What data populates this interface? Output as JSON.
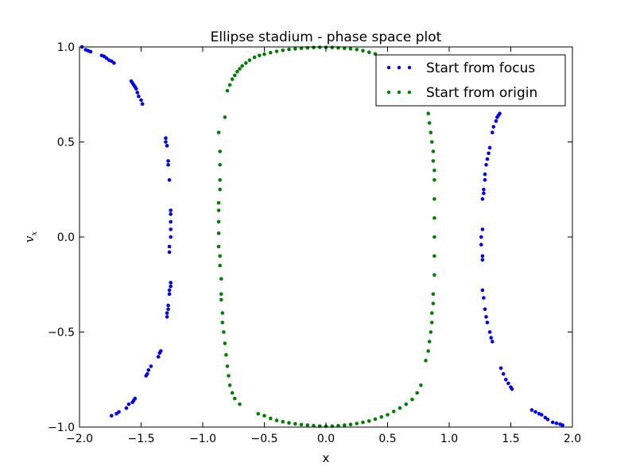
{
  "chart_data": {
    "type": "scatter",
    "title": "Ellipse stadium - phase space plot",
    "xlabel": "x",
    "ylabel": "v_x",
    "xlim": [
      -2.0,
      2.0
    ],
    "ylim": [
      -1.0,
      1.0
    ],
    "xticks": [
      -2.0,
      -1.5,
      -1.0,
      -0.5,
      0.0,
      0.5,
      1.0,
      1.5,
      2.0
    ],
    "yticks": [
      -1.0,
      -0.5,
      0.0,
      0.5,
      1.0
    ],
    "xtick_labels": [
      "−2.0",
      "−1.5",
      "−1.0",
      "−0.5",
      "0.0",
      "0.5",
      "1.0",
      "1.5",
      "2.0"
    ],
    "ytick_labels": [
      "−1.0",
      "−0.5",
      "0.0",
      "0.5",
      "1.0"
    ],
    "grid": false,
    "legend_position": "top-right",
    "series": [
      {
        "name": "Start from focus",
        "color": "#0000ff",
        "points": [
          [
            -1.98,
            1.0
          ],
          [
            -1.95,
            0.985
          ],
          [
            -1.93,
            0.98
          ],
          [
            -1.91,
            0.975
          ],
          [
            -1.82,
            0.955
          ],
          [
            -1.8,
            0.95
          ],
          [
            -1.78,
            0.94
          ],
          [
            -1.76,
            0.93
          ],
          [
            -1.74,
            0.925
          ],
          [
            -1.72,
            0.915
          ],
          [
            -1.58,
            0.82
          ],
          [
            -1.57,
            0.81
          ],
          [
            -1.56,
            0.8
          ],
          [
            -1.55,
            0.79
          ],
          [
            -1.54,
            0.78
          ],
          [
            -1.53,
            0.76
          ],
          [
            -1.52,
            0.74
          ],
          [
            -1.5,
            0.72
          ],
          [
            -1.49,
            0.7
          ],
          [
            -1.3,
            0.52
          ],
          [
            -1.3,
            0.5
          ],
          [
            -1.29,
            0.48
          ],
          [
            -1.28,
            0.4
          ],
          [
            -1.28,
            0.38
          ],
          [
            -1.27,
            0.3
          ],
          [
            -1.26,
            0.14
          ],
          [
            -1.26,
            0.12
          ],
          [
            -1.26,
            0.08
          ],
          [
            -1.26,
            0.04
          ],
          [
            -1.26,
            0.0
          ],
          [
            -1.27,
            -0.05
          ],
          [
            -1.27,
            -0.08
          ],
          [
            -1.26,
            -0.24
          ],
          [
            -1.26,
            -0.26
          ],
          [
            -1.27,
            -0.28
          ],
          [
            -1.27,
            -0.3
          ],
          [
            -1.28,
            -0.36
          ],
          [
            -1.28,
            -0.38
          ],
          [
            -1.29,
            -0.4
          ],
          [
            -1.29,
            -0.42
          ],
          [
            -1.34,
            -0.6
          ],
          [
            -1.35,
            -0.61
          ],
          [
            -1.36,
            -0.63
          ],
          [
            -1.42,
            -0.68
          ],
          [
            -1.44,
            -0.7
          ],
          [
            -1.45,
            -0.72
          ],
          [
            -1.46,
            -0.73
          ],
          [
            -1.55,
            -0.85
          ],
          [
            -1.56,
            -0.86
          ],
          [
            -1.57,
            -0.87
          ],
          [
            -1.6,
            -0.88
          ],
          [
            -1.62,
            -0.9
          ],
          [
            -1.68,
            -0.92
          ],
          [
            -1.7,
            -0.93
          ],
          [
            -1.74,
            -0.94
          ],
          [
            1.92,
            -0.99
          ],
          [
            1.9,
            -0.985
          ],
          [
            1.87,
            -0.98
          ],
          [
            1.84,
            -0.975
          ],
          [
            1.8,
            -0.96
          ],
          [
            1.78,
            -0.95
          ],
          [
            1.75,
            -0.935
          ],
          [
            1.73,
            -0.93
          ],
          [
            1.7,
            -0.92
          ],
          [
            1.67,
            -0.91
          ],
          [
            1.51,
            -0.8
          ],
          [
            1.5,
            -0.79
          ],
          [
            1.48,
            -0.77
          ],
          [
            1.46,
            -0.75
          ],
          [
            1.44,
            -0.72
          ],
          [
            1.42,
            -0.69
          ],
          [
            1.35,
            -0.55
          ],
          [
            1.34,
            -0.53
          ],
          [
            1.33,
            -0.5
          ],
          [
            1.31,
            -0.45
          ],
          [
            1.3,
            -0.42
          ],
          [
            1.29,
            -0.38
          ],
          [
            1.28,
            -0.32
          ],
          [
            1.27,
            -0.28
          ],
          [
            1.27,
            -0.12
          ],
          [
            1.27,
            -0.1
          ],
          [
            1.26,
            -0.04
          ],
          [
            1.26,
            0.0
          ],
          [
            1.27,
            0.04
          ],
          [
            1.27,
            0.2
          ],
          [
            1.28,
            0.23
          ],
          [
            1.28,
            0.25
          ],
          [
            1.29,
            0.3
          ],
          [
            1.29,
            0.33
          ],
          [
            1.3,
            0.38
          ],
          [
            1.31,
            0.41
          ],
          [
            1.32,
            0.44
          ],
          [
            1.33,
            0.47
          ],
          [
            1.35,
            0.55
          ],
          [
            1.36,
            0.58
          ],
          [
            1.38,
            0.61
          ],
          [
            1.39,
            0.63
          ],
          [
            1.4,
            0.64
          ],
          [
            1.41,
            0.65
          ]
        ]
      },
      {
        "name": "Start from origin",
        "color": "#008000",
        "points": [
          [
            -0.82,
            0.63
          ],
          [
            -0.8,
            0.77
          ],
          [
            -0.78,
            0.8
          ],
          [
            -0.76,
            0.83
          ],
          [
            -0.74,
            0.85
          ],
          [
            -0.72,
            0.87
          ],
          [
            -0.7,
            0.885
          ],
          [
            -0.68,
            0.9
          ],
          [
            -0.65,
            0.915
          ],
          [
            -0.62,
            0.93
          ],
          [
            -0.58,
            0.945
          ],
          [
            -0.54,
            0.955
          ],
          [
            -0.5,
            0.962
          ],
          [
            -0.45,
            0.97
          ],
          [
            -0.4,
            0.977
          ],
          [
            -0.35,
            0.982
          ],
          [
            -0.3,
            0.987
          ],
          [
            -0.25,
            0.99
          ],
          [
            -0.2,
            0.993
          ],
          [
            -0.15,
            0.995
          ],
          [
            -0.1,
            0.997
          ],
          [
            -0.05,
            0.998
          ],
          [
            0.0,
            0.998
          ],
          [
            0.05,
            0.997
          ],
          [
            0.1,
            0.995
          ],
          [
            0.15,
            0.993
          ],
          [
            0.2,
            0.99
          ],
          [
            0.25,
            0.986
          ],
          [
            0.3,
            0.98
          ],
          [
            0.35,
            0.972
          ],
          [
            0.4,
            0.963
          ],
          [
            0.45,
            0.952
          ],
          [
            0.5,
            0.94
          ],
          [
            0.55,
            0.92
          ],
          [
            0.6,
            0.9
          ],
          [
            0.65,
            0.87
          ],
          [
            0.7,
            0.84
          ],
          [
            0.74,
            0.8
          ],
          [
            0.78,
            0.74
          ],
          [
            -0.87,
            0.55
          ],
          [
            -0.86,
            0.45
          ],
          [
            -0.86,
            0.38
          ],
          [
            -0.86,
            0.3
          ],
          [
            -0.86,
            0.25
          ],
          [
            -0.87,
            0.18
          ],
          [
            -0.87,
            0.14
          ],
          [
            -0.87,
            0.08
          ],
          [
            -0.87,
            0.02
          ],
          [
            -0.87,
            -0.05
          ],
          [
            -0.86,
            -0.1
          ],
          [
            -0.86,
            -0.15
          ],
          [
            -0.85,
            -0.22
          ],
          [
            -0.85,
            -0.3
          ],
          [
            -0.85,
            -0.33
          ],
          [
            -0.84,
            -0.4
          ],
          [
            -0.84,
            -0.45
          ],
          [
            -0.83,
            -0.5
          ],
          [
            0.83,
            0.65
          ],
          [
            0.84,
            0.6
          ],
          [
            0.85,
            0.55
          ],
          [
            0.86,
            0.5
          ],
          [
            0.87,
            0.45
          ],
          [
            0.87,
            0.4
          ],
          [
            0.88,
            0.35
          ],
          [
            0.88,
            0.3
          ],
          [
            0.88,
            0.2
          ],
          [
            0.88,
            0.1
          ],
          [
            0.88,
            0.0
          ],
          [
            0.88,
            -0.1
          ],
          [
            0.88,
            -0.2
          ],
          [
            0.87,
            -0.3
          ],
          [
            0.87,
            -0.35
          ],
          [
            0.86,
            -0.4
          ],
          [
            0.86,
            -0.45
          ],
          [
            0.85,
            -0.5
          ],
          [
            0.84,
            -0.55
          ],
          [
            0.83,
            -0.6
          ],
          [
            0.81,
            -0.65
          ],
          [
            -0.82,
            -0.56
          ],
          [
            -0.81,
            -0.62
          ],
          [
            -0.8,
            -0.68
          ],
          [
            -0.79,
            -0.73
          ],
          [
            -0.78,
            -0.78
          ],
          [
            -0.76,
            -0.82
          ],
          [
            -0.74,
            -0.85
          ],
          [
            -0.7,
            -0.88
          ],
          [
            -0.55,
            -0.93
          ],
          [
            -0.5,
            -0.94
          ],
          [
            -0.45,
            -0.955
          ],
          [
            -0.4,
            -0.965
          ],
          [
            -0.35,
            -0.972
          ],
          [
            -0.3,
            -0.978
          ],
          [
            -0.25,
            -0.983
          ],
          [
            -0.2,
            -0.987
          ],
          [
            -0.15,
            -0.99
          ],
          [
            -0.1,
            -0.993
          ],
          [
            -0.05,
            -0.995
          ],
          [
            0.0,
            -0.996
          ],
          [
            0.05,
            -0.995
          ],
          [
            0.1,
            -0.993
          ],
          [
            0.15,
            -0.99
          ],
          [
            0.2,
            -0.986
          ],
          [
            0.25,
            -0.981
          ],
          [
            0.3,
            -0.975
          ],
          [
            0.35,
            -0.968
          ],
          [
            0.4,
            -0.958
          ],
          [
            0.45,
            -0.947
          ],
          [
            0.5,
            -0.935
          ],
          [
            0.55,
            -0.918
          ],
          [
            0.6,
            -0.9
          ],
          [
            0.65,
            -0.88
          ],
          [
            0.7,
            -0.855
          ],
          [
            0.74,
            -0.82
          ],
          [
            0.77,
            -0.78
          ]
        ]
      }
    ]
  }
}
